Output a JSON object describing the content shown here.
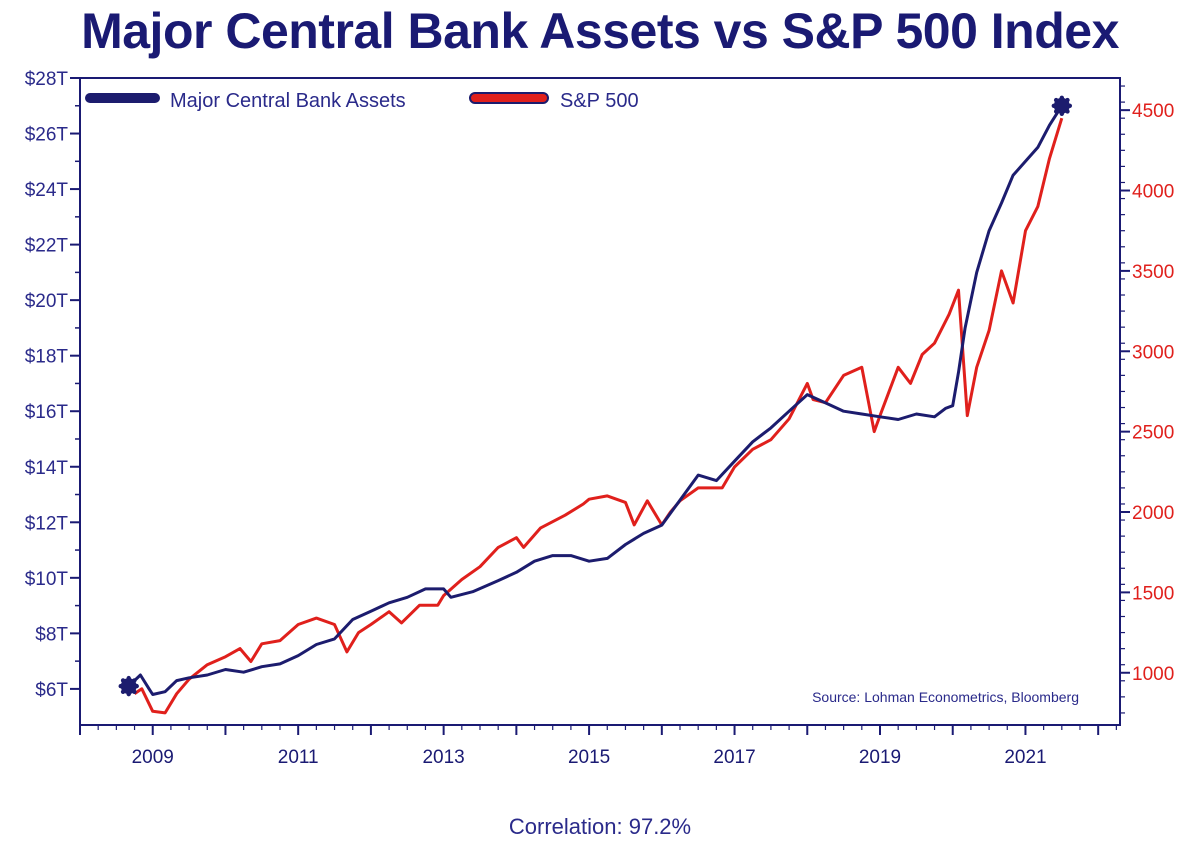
{
  "chart_data": {
    "type": "line",
    "title": "Major Central Bank Assets vs S&P 500 Index",
    "footer": "Correlation: 97.2%",
    "source": "Source: Lohman Econometrics, Bloomberg",
    "legend_placement": "top-left",
    "grid": false,
    "xlim": [
      2008.0,
      2022.3
    ],
    "x_ticks": [
      2009,
      2011,
      2013,
      2015,
      2017,
      2019,
      2021
    ],
    "y_left": {
      "ylim": [
        4.7,
        28
      ],
      "ticks": [
        6,
        8,
        10,
        12,
        14,
        16,
        18,
        20,
        22,
        24,
        26,
        28
      ],
      "tick_labels": [
        "$6T",
        "$8T",
        "$10T",
        "$12T",
        "$14T",
        "$16T",
        "$18T",
        "$20T",
        "$22T",
        "$24T",
        "$26T",
        "$28T"
      ]
    },
    "y_right": {
      "ylim": [
        675,
        4700
      ],
      "ticks": [
        1000,
        1500,
        2000,
        2500,
        3000,
        3500,
        4000,
        4500
      ],
      "tick_labels": [
        "1000",
        "1500",
        "2000",
        "2500",
        "3000",
        "3500",
        "4000",
        "4500"
      ]
    },
    "series": [
      {
        "name": "Major Central Bank Assets",
        "axis": "left",
        "color": "#1c1c6e",
        "points": [
          [
            2008.67,
            6.1
          ],
          [
            2008.83,
            6.5
          ],
          [
            2008.95,
            6.0
          ],
          [
            2009.0,
            5.8
          ],
          [
            2009.17,
            5.9
          ],
          [
            2009.33,
            6.3
          ],
          [
            2009.5,
            6.4
          ],
          [
            2009.75,
            6.5
          ],
          [
            2010.0,
            6.7
          ],
          [
            2010.25,
            6.6
          ],
          [
            2010.5,
            6.8
          ],
          [
            2010.75,
            6.9
          ],
          [
            2011.0,
            7.2
          ],
          [
            2011.25,
            7.6
          ],
          [
            2011.5,
            7.8
          ],
          [
            2011.75,
            8.5
          ],
          [
            2012.0,
            8.8
          ],
          [
            2012.25,
            9.1
          ],
          [
            2012.5,
            9.3
          ],
          [
            2012.75,
            9.6
          ],
          [
            2013.0,
            9.6
          ],
          [
            2013.1,
            9.3
          ],
          [
            2013.4,
            9.5
          ],
          [
            2013.75,
            9.9
          ],
          [
            2014.0,
            10.2
          ],
          [
            2014.25,
            10.6
          ],
          [
            2014.5,
            10.8
          ],
          [
            2014.75,
            10.8
          ],
          [
            2015.0,
            10.6
          ],
          [
            2015.25,
            10.7
          ],
          [
            2015.5,
            11.2
          ],
          [
            2015.75,
            11.6
          ],
          [
            2016.0,
            11.9
          ],
          [
            2016.25,
            12.8
          ],
          [
            2016.5,
            13.7
          ],
          [
            2016.75,
            13.5
          ],
          [
            2017.0,
            14.2
          ],
          [
            2017.25,
            14.9
          ],
          [
            2017.5,
            15.4
          ],
          [
            2017.75,
            16.0
          ],
          [
            2018.0,
            16.6
          ],
          [
            2018.25,
            16.3
          ],
          [
            2018.5,
            16.0
          ],
          [
            2018.75,
            15.9
          ],
          [
            2019.0,
            15.8
          ],
          [
            2019.25,
            15.7
          ],
          [
            2019.5,
            15.9
          ],
          [
            2019.75,
            15.8
          ],
          [
            2019.9,
            16.1
          ],
          [
            2020.0,
            16.2
          ],
          [
            2020.08,
            17.4
          ],
          [
            2020.17,
            19.0
          ],
          [
            2020.33,
            21.0
          ],
          [
            2020.5,
            22.5
          ],
          [
            2020.67,
            23.5
          ],
          [
            2020.83,
            24.5
          ],
          [
            2021.0,
            25.0
          ],
          [
            2021.17,
            25.5
          ],
          [
            2021.33,
            26.3
          ],
          [
            2021.5,
            27.0
          ]
        ]
      },
      {
        "name": "S&P 500",
        "axis": "right",
        "color": "#e0201c",
        "points": [
          [
            2008.75,
            870
          ],
          [
            2008.85,
            900
          ],
          [
            2009.0,
            760
          ],
          [
            2009.17,
            750
          ],
          [
            2009.33,
            870
          ],
          [
            2009.5,
            960
          ],
          [
            2009.75,
            1050
          ],
          [
            2010.0,
            1100
          ],
          [
            2010.2,
            1150
          ],
          [
            2010.35,
            1070
          ],
          [
            2010.5,
            1180
          ],
          [
            2010.75,
            1200
          ],
          [
            2011.0,
            1300
          ],
          [
            2011.25,
            1340
          ],
          [
            2011.5,
            1300
          ],
          [
            2011.67,
            1130
          ],
          [
            2011.83,
            1250
          ],
          [
            2012.0,
            1300
          ],
          [
            2012.25,
            1380
          ],
          [
            2012.42,
            1310
          ],
          [
            2012.67,
            1420
          ],
          [
            2012.92,
            1420
          ],
          [
            2013.0,
            1480
          ],
          [
            2013.25,
            1580
          ],
          [
            2013.5,
            1660
          ],
          [
            2013.75,
            1780
          ],
          [
            2014.0,
            1840
          ],
          [
            2014.1,
            1780
          ],
          [
            2014.33,
            1900
          ],
          [
            2014.67,
            1980
          ],
          [
            2014.92,
            2050
          ],
          [
            2015.0,
            2080
          ],
          [
            2015.25,
            2100
          ],
          [
            2015.5,
            2060
          ],
          [
            2015.62,
            1920
          ],
          [
            2015.8,
            2070
          ],
          [
            2016.0,
            1920
          ],
          [
            2016.12,
            2000
          ],
          [
            2016.25,
            2070
          ],
          [
            2016.5,
            2150
          ],
          [
            2016.83,
            2150
          ],
          [
            2017.0,
            2280
          ],
          [
            2017.25,
            2390
          ],
          [
            2017.5,
            2450
          ],
          [
            2017.75,
            2580
          ],
          [
            2018.0,
            2800
          ],
          [
            2018.08,
            2700
          ],
          [
            2018.25,
            2680
          ],
          [
            2018.5,
            2850
          ],
          [
            2018.75,
            2900
          ],
          [
            2018.92,
            2500
          ],
          [
            2019.0,
            2600
          ],
          [
            2019.25,
            2900
          ],
          [
            2019.42,
            2800
          ],
          [
            2019.58,
            2980
          ],
          [
            2019.75,
            3050
          ],
          [
            2019.95,
            3230
          ],
          [
            2020.08,
            3380
          ],
          [
            2020.2,
            2600
          ],
          [
            2020.33,
            2900
          ],
          [
            2020.5,
            3130
          ],
          [
            2020.67,
            3500
          ],
          [
            2020.83,
            3300
          ],
          [
            2021.0,
            3750
          ],
          [
            2021.17,
            3900
          ],
          [
            2021.33,
            4200
          ],
          [
            2021.5,
            4450
          ]
        ]
      }
    ]
  }
}
